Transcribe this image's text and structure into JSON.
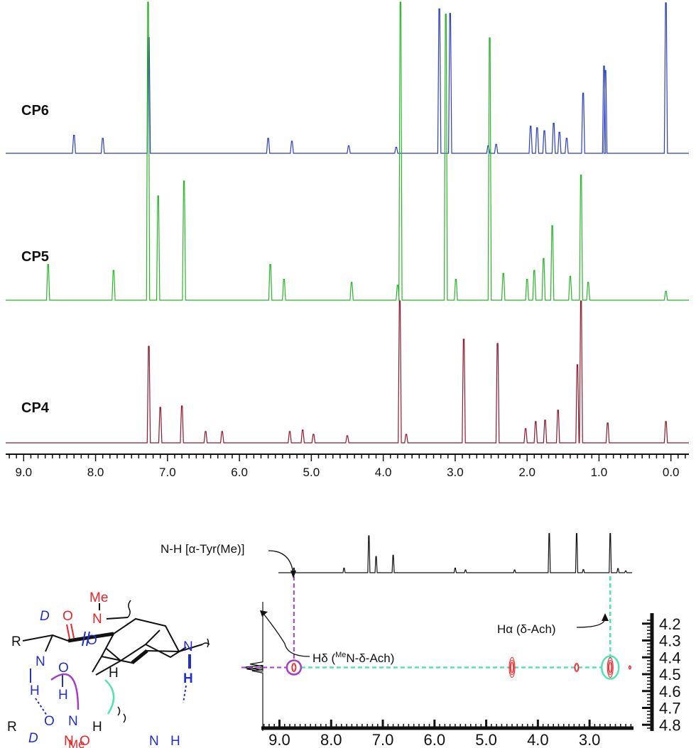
{
  "chart_data": [
    {
      "type": "line",
      "x_axis": {
        "range": [
          9.25,
          -0.25
        ],
        "reversed": true,
        "ticks": [
          9.0,
          8.0,
          7.0,
          6.0,
          5.0,
          4.0,
          3.0,
          2.0,
          1.0,
          0.0
        ],
        "tick_labels": [
          "9.0",
          "8.0",
          "7.0",
          "6.0",
          "5.0",
          "4.0",
          "3.0",
          "2.0",
          "1.0",
          "0.0"
        ]
      },
      "grid": false,
      "series": [
        {
          "name": "CP6",
          "color": "#2c3fbf",
          "peaks": [
            {
              "x": 8.3,
              "y": 0.12
            },
            {
              "x": 7.9,
              "y": 0.1
            },
            {
              "x": 7.26,
              "y": 0.77
            },
            {
              "x": 5.6,
              "y": 0.1
            },
            {
              "x": 5.27,
              "y": 0.08
            },
            {
              "x": 4.48,
              "y": 0.05
            },
            {
              "x": 3.82,
              "y": 0.04
            },
            {
              "x": 3.22,
              "y": 0.96
            },
            {
              "x": 3.07,
              "y": 0.93
            },
            {
              "x": 2.54,
              "y": 0.05
            },
            {
              "x": 2.43,
              "y": 0.06
            },
            {
              "x": 1.95,
              "y": 0.18
            },
            {
              "x": 1.86,
              "y": 0.17
            },
            {
              "x": 1.76,
              "y": 0.15
            },
            {
              "x": 1.63,
              "y": 0.2
            },
            {
              "x": 1.55,
              "y": 0.14
            },
            {
              "x": 1.45,
              "y": 0.1
            },
            {
              "x": 1.22,
              "y": 0.4
            },
            {
              "x": 0.93,
              "y": 0.58
            },
            {
              "x": 0.91,
              "y": 0.55
            },
            {
              "x": 0.07,
              "y": 1.0
            }
          ]
        },
        {
          "name": "CP5",
          "color": "#2ab52a",
          "peaks": [
            {
              "x": 8.66,
              "y": 0.12
            },
            {
              "x": 7.75,
              "y": 0.1
            },
            {
              "x": 7.27,
              "y": 1.0
            },
            {
              "x": 7.13,
              "y": 0.35
            },
            {
              "x": 6.77,
              "y": 0.4
            },
            {
              "x": 5.57,
              "y": 0.12
            },
            {
              "x": 5.38,
              "y": 0.07
            },
            {
              "x": 4.44,
              "y": 0.06
            },
            {
              "x": 3.8,
              "y": 0.05
            },
            {
              "x": 3.76,
              "y": 1.0
            },
            {
              "x": 3.13,
              "y": 0.96
            },
            {
              "x": 2.99,
              "y": 0.07
            },
            {
              "x": 2.52,
              "y": 0.88
            },
            {
              "x": 2.33,
              "y": 0.09
            },
            {
              "x": 2.0,
              "y": 0.07
            },
            {
              "x": 1.9,
              "y": 0.1
            },
            {
              "x": 1.77,
              "y": 0.14
            },
            {
              "x": 1.65,
              "y": 0.25
            },
            {
              "x": 1.4,
              "y": 0.08
            },
            {
              "x": 1.25,
              "y": 0.42
            },
            {
              "x": 1.15,
              "y": 0.06
            },
            {
              "x": 0.07,
              "y": 0.03
            }
          ]
        },
        {
          "name": "CP4",
          "color": "#8b1a2e",
          "peaks": [
            {
              "x": 7.26,
              "y": 0.68
            },
            {
              "x": 7.1,
              "y": 0.25
            },
            {
              "x": 6.8,
              "y": 0.26
            },
            {
              "x": 6.47,
              "y": 0.08
            },
            {
              "x": 6.24,
              "y": 0.08
            },
            {
              "x": 5.3,
              "y": 0.08
            },
            {
              "x": 5.12,
              "y": 0.09
            },
            {
              "x": 4.97,
              "y": 0.06
            },
            {
              "x": 4.5,
              "y": 0.05
            },
            {
              "x": 3.77,
              "y": 1.0
            },
            {
              "x": 3.68,
              "y": 0.06
            },
            {
              "x": 2.88,
              "y": 0.73
            },
            {
              "x": 2.41,
              "y": 0.7
            },
            {
              "x": 2.02,
              "y": 0.1
            },
            {
              "x": 1.88,
              "y": 0.15
            },
            {
              "x": 1.75,
              "y": 0.16
            },
            {
              "x": 1.57,
              "y": 0.23
            },
            {
              "x": 1.3,
              "y": 0.55
            },
            {
              "x": 1.25,
              "y": 1.0
            },
            {
              "x": 0.88,
              "y": 0.14
            },
            {
              "x": 0.07,
              "y": 0.15
            }
          ]
        }
      ]
    },
    {
      "type": "heatmap",
      "x_axis": {
        "range": [
          9.35,
          2.15
        ],
        "reversed": true,
        "ticks": [
          9.0,
          8.0,
          7.0,
          6.0,
          5.0,
          4.0,
          3.0
        ],
        "tick_labels": [
          "9.0",
          "8.0",
          "7.0",
          "6.0",
          "5.0",
          "4.0",
          "3.0"
        ]
      },
      "y_axis": {
        "range": [
          4.18,
          4.82
        ],
        "ticks": [
          4.2,
          4.3,
          4.4,
          4.5,
          4.6,
          4.7,
          4.8
        ],
        "tick_labels": [
          "4.2",
          "4.3",
          "4.4",
          "4.5",
          "4.6",
          "4.7",
          "4.8"
        ]
      },
      "grid": false,
      "projection_f2": [
        {
          "x": 8.72,
          "y": 0.1
        },
        {
          "x": 7.75,
          "y": 0.1
        },
        {
          "x": 7.27,
          "y": 0.8
        },
        {
          "x": 7.13,
          "y": 0.35
        },
        {
          "x": 6.8,
          "y": 0.38
        },
        {
          "x": 5.6,
          "y": 0.1
        },
        {
          "x": 5.4,
          "y": 0.06
        },
        {
          "x": 4.45,
          "y": 0.06
        },
        {
          "x": 3.78,
          "y": 0.85
        },
        {
          "x": 3.25,
          "y": 0.85
        },
        {
          "x": 3.12,
          "y": 0.07
        },
        {
          "x": 2.6,
          "y": 0.85
        },
        {
          "x": 2.45,
          "y": 0.09
        },
        {
          "x": 2.3,
          "y": 0.04
        }
      ],
      "projection_f1": [
        {
          "y": 4.44,
          "v": 0.12
        },
        {
          "y": 4.46,
          "v": 0.2
        },
        {
          "y": 4.47,
          "v": 0.15
        },
        {
          "y": 4.48,
          "v": 0.1
        }
      ],
      "cross_peaks": [
        {
          "x": 8.72,
          "y": 4.46,
          "size": "small"
        },
        {
          "x": 4.5,
          "y": 4.46,
          "size": "large"
        },
        {
          "x": 3.25,
          "y": 4.46,
          "size": "small"
        },
        {
          "x": 2.6,
          "y": 4.46,
          "size": "large"
        },
        {
          "x": 2.22,
          "y": 4.46,
          "size": "tiny"
        }
      ],
      "annotations": {
        "nh_label": "N-H [α-Tyr(Me)]",
        "ha_label": "Hα (δ-Ach)",
        "hd_prefix": "Hδ (",
        "hd_sup": "Me",
        "hd_suffix": "N-δ-Ach)"
      }
    }
  ],
  "structure": {
    "labels": {
      "r1": "R",
      "r2": "R",
      "d1": "D",
      "d2": "D",
      "me1": "Me",
      "me2": "Me",
      "o1": "O",
      "o2": "O",
      "o3": "O",
      "o4": "O",
      "o5": "O",
      "n1": "N",
      "n2": "N",
      "n3": "N",
      "n4": "N",
      "n5": "N",
      "n6": "N",
      "h1": "H",
      "h2": "H",
      "h3": "H",
      "h4": "H",
      "h5": "H",
      "h6": "H"
    },
    "colors": {
      "red": "#e8262a",
      "blue": "#2230c8",
      "purple": "#a23fc8",
      "teal": "#55e0b5"
    }
  }
}
